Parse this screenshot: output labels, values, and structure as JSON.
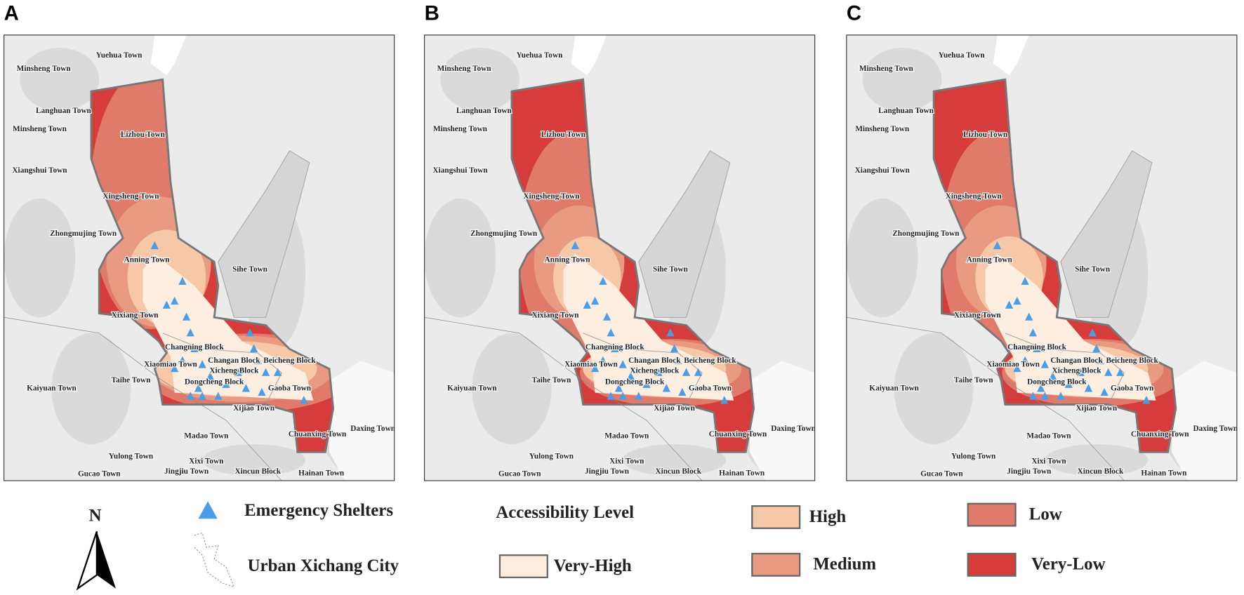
{
  "panels": [
    "A",
    "B",
    "C"
  ],
  "places": [
    "Yuehua Town",
    "Minsheng Town",
    "Langhuan Town",
    "Minsheng Town",
    "Lizhou Town",
    "Xiangshui Town",
    "Xingsheng Town",
    "Zhongmujing Town",
    "Anning Town",
    "Sihe Town",
    "Xixiang Town",
    "Changning Block",
    "Xiaomiao Town",
    "Changan Block",
    "Beicheng Block",
    "Taihe Town",
    "Xicheng Block",
    "Kaiyuan Town",
    "Dongcheng Block",
    "Gaoba Town",
    "Xijiao Town",
    "Madao Town",
    "Chuanxing Town",
    "Daxing Town",
    "Yulong Town",
    "Xixi Town",
    "Gucao Town",
    "Jingjiu Town",
    "Xincun Block",
    "Hainan Town"
  ],
  "legend": {
    "north": "N",
    "shelters": "Emergency Shelters",
    "urban": "Urban Xichang City",
    "title": "Accessibility Level",
    "levels": [
      {
        "label": "Very-High",
        "color": "#fdeee0"
      },
      {
        "label": "High",
        "color": "#f6c8a8"
      },
      {
        "label": "Medium",
        "color": "#e89a82"
      },
      {
        "label": "Low",
        "color": "#e07a6a"
      },
      {
        "label": "Very-Low",
        "color": "#d63c3c"
      }
    ]
  }
}
